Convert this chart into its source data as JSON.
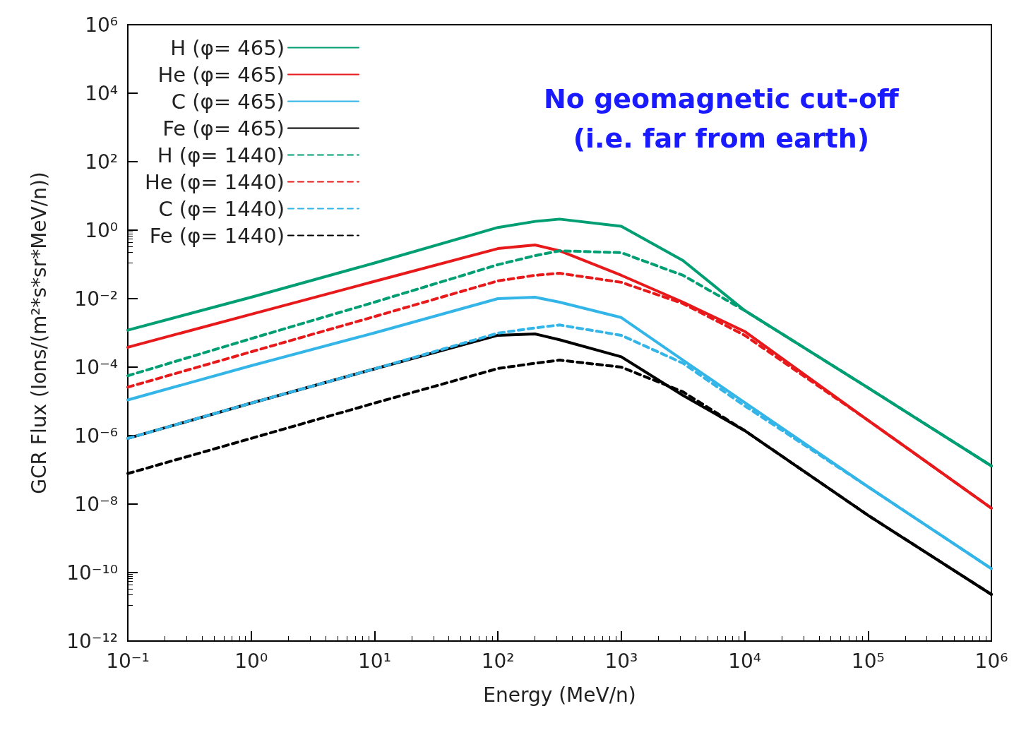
{
  "chart_data": {
    "type": "line",
    "xlabel": "Energy (MeV/n)",
    "ylabel": "GCR Flux (Ions/(m²*s*sr*MeV/n))",
    "annotations": [
      "No geomagnetic cut-off\n(i.e. far from earth)"
    ],
    "x": [
      0.1,
      1,
      10,
      100,
      200,
      316,
      1000,
      3160,
      10000,
      100000,
      1000000
    ],
    "series": [
      {
        "name": "H (φ= 465)",
        "color": "#009e73",
        "line_style": "solid",
        "values": [
          0.0012,
          0.011,
          0.11,
          1.2,
          1.8,
          2.1,
          1.3,
          0.13,
          0.0045,
          2.5e-05,
          1.3e-07
        ]
      },
      {
        "name": "He (φ= 465)",
        "color": "#e8191b",
        "line_style": "solid",
        "values": [
          0.00038,
          0.0035,
          0.032,
          0.29,
          0.37,
          0.25,
          0.048,
          0.0079,
          0.0011,
          2.8e-06,
          7.6e-09
        ]
      },
      {
        "name": "C (φ= 465)",
        "color": "#33b5e8",
        "line_style": "solid",
        "values": [
          1.1e-05,
          0.00011,
          0.001,
          0.01,
          0.011,
          0.0079,
          0.0028,
          0.00016,
          9.3e-06,
          3.2e-08,
          1.3e-10
        ]
      },
      {
        "name": "Fe (φ= 465)",
        "color": "#000000",
        "line_style": "solid",
        "values": [
          8.3e-07,
          8.9e-06,
          8.9e-05,
          0.00085,
          0.00093,
          0.00063,
          0.0002,
          1.5e-05,
          1.4e-06,
          4.7e-09,
          2.3e-11
        ]
      },
      {
        "name": "H (φ= 1440)",
        "color": "#009e73",
        "line_style": "dashed",
        "values": [
          5.6e-05,
          0.00068,
          0.0079,
          0.098,
          0.18,
          0.25,
          0.22,
          0.048,
          0.0045,
          2.5e-05,
          1.3e-07
        ]
      },
      {
        "name": "He (φ= 1440)",
        "color": "#e8191b",
        "line_style": "dashed",
        "values": [
          2.6e-05,
          0.00028,
          0.003,
          0.033,
          0.048,
          0.055,
          0.03,
          0.0072,
          0.00085,
          2.8e-06,
          7.6e-09
        ]
      },
      {
        "name": "C (φ= 1440)",
        "color": "#33b5e8",
        "line_style": "dashed",
        "values": [
          8.3e-07,
          8.9e-06,
          8.9e-05,
          0.00098,
          0.0014,
          0.0017,
          0.00085,
          0.00013,
          7.4e-06,
          3.2e-08,
          1.3e-10
        ]
      },
      {
        "name": "Fe (φ= 1440)",
        "color": "#000000",
        "line_style": "dashed",
        "values": [
          7.8e-08,
          8.3e-07,
          8.9e-06,
          9.1e-05,
          0.00013,
          0.00016,
          0.0001,
          1.9e-05,
          1.4e-06,
          4.7e-09,
          2.3e-11
        ]
      }
    ],
    "log": "xy",
    "xlim": [
      0.1,
      1000000
    ],
    "ylim": [
      1e-12,
      1000000
    ],
    "xticks": [
      {
        "value": 0.1,
        "label": "10⁻¹"
      },
      {
        "value": 1,
        "label": "10⁰"
      },
      {
        "value": 10,
        "label": "10¹"
      },
      {
        "value": 100,
        "label": "10²"
      },
      {
        "value": 1000,
        "label": "10³"
      },
      {
        "value": 10000,
        "label": "10⁴"
      },
      {
        "value": 100000,
        "label": "10⁵"
      },
      {
        "value": 1000000,
        "label": "10⁶"
      }
    ],
    "yticks": [
      {
        "value": 1e-12,
        "label": "10⁻¹²"
      },
      {
        "value": 1e-10,
        "label": "10⁻¹⁰"
      },
      {
        "value": 1e-08,
        "label": "10⁻⁸"
      },
      {
        "value": 1e-06,
        "label": "10⁻⁶"
      },
      {
        "value": 0.0001,
        "label": "10⁻⁴"
      },
      {
        "value": 0.01,
        "label": "10⁻²"
      },
      {
        "value": 1,
        "label": "10⁰"
      },
      {
        "value": 100,
        "label": "10²"
      },
      {
        "value": 10000,
        "label": "10⁴"
      },
      {
        "value": 1000000,
        "label": "10⁶"
      }
    ],
    "grid": false,
    "legend": "top left",
    "marker": "none"
  }
}
